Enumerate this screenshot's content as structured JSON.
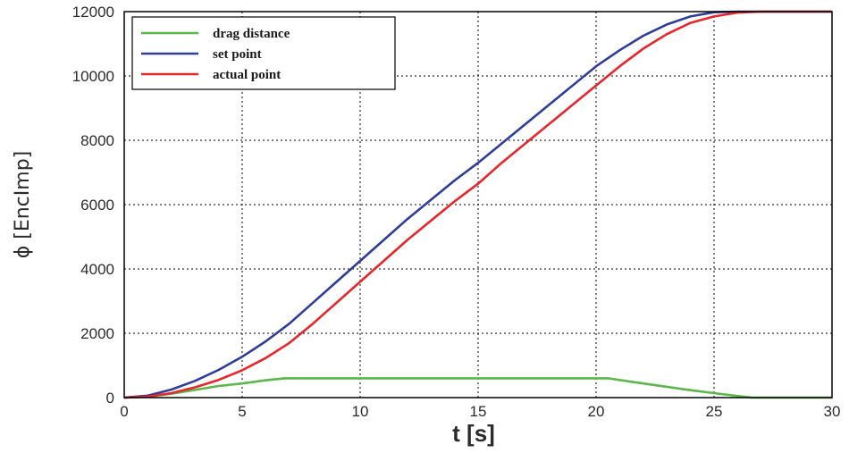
{
  "chart_data": {
    "type": "line",
    "xlabel": "t [s]",
    "ylabel": "ϕ [EncImp]",
    "xlim": [
      0,
      30
    ],
    "ylim": [
      0,
      12000
    ],
    "x_ticks": [
      "0",
      "5",
      "10",
      "15",
      "20",
      "25",
      "30"
    ],
    "y_ticks": [
      "0",
      "2000",
      "4000",
      "6000",
      "8000",
      "10000",
      "12000"
    ],
    "grid": true,
    "legend_position": "top-left",
    "series": [
      {
        "name": "drag distance",
        "color": "#5cb74a",
        "points": [
          [
            0,
            0
          ],
          [
            1,
            30
          ],
          [
            2,
            120
          ],
          [
            3,
            240
          ],
          [
            4,
            360
          ],
          [
            5,
            440
          ],
          [
            6,
            540
          ],
          [
            6.8,
            600
          ],
          [
            10,
            600
          ],
          [
            15,
            600
          ],
          [
            20,
            600
          ],
          [
            20.5,
            600
          ],
          [
            22,
            440
          ],
          [
            24,
            230
          ],
          [
            25,
            140
          ],
          [
            26,
            50
          ],
          [
            26.6,
            0
          ],
          [
            30,
            0
          ]
        ]
      },
      {
        "name": "set point",
        "color": "#2e3d9a",
        "points": [
          [
            0,
            0
          ],
          [
            1,
            60
          ],
          [
            2,
            250
          ],
          [
            3,
            520
          ],
          [
            4,
            860
          ],
          [
            5,
            1270
          ],
          [
            6,
            1750
          ],
          [
            7,
            2300
          ],
          [
            8,
            2950
          ],
          [
            9,
            3600
          ],
          [
            10,
            4250
          ],
          [
            12,
            5550
          ],
          [
            14,
            6750
          ],
          [
            15,
            7300
          ],
          [
            16,
            7900
          ],
          [
            18,
            9100
          ],
          [
            20,
            10300
          ],
          [
            21,
            10800
          ],
          [
            22,
            11250
          ],
          [
            23,
            11600
          ],
          [
            24,
            11850
          ],
          [
            25,
            11980
          ],
          [
            26,
            12000
          ],
          [
            30,
            12000
          ]
        ]
      },
      {
        "name": "actual point",
        "color": "#e8262a",
        "points": [
          [
            0,
            0
          ],
          [
            1,
            30
          ],
          [
            2,
            140
          ],
          [
            3,
            320
          ],
          [
            4,
            550
          ],
          [
            5,
            850
          ],
          [
            6,
            1230
          ],
          [
            7,
            1700
          ],
          [
            8,
            2300
          ],
          [
            9,
            2950
          ],
          [
            10,
            3600
          ],
          [
            12,
            4900
          ],
          [
            14,
            6100
          ],
          [
            15,
            6650
          ],
          [
            16,
            7300
          ],
          [
            18,
            8500
          ],
          [
            20,
            9700
          ],
          [
            21,
            10300
          ],
          [
            22,
            10850
          ],
          [
            23,
            11300
          ],
          [
            24,
            11650
          ],
          [
            25,
            11850
          ],
          [
            26,
            11970
          ],
          [
            27,
            12000
          ],
          [
            30,
            12000
          ]
        ]
      }
    ]
  }
}
